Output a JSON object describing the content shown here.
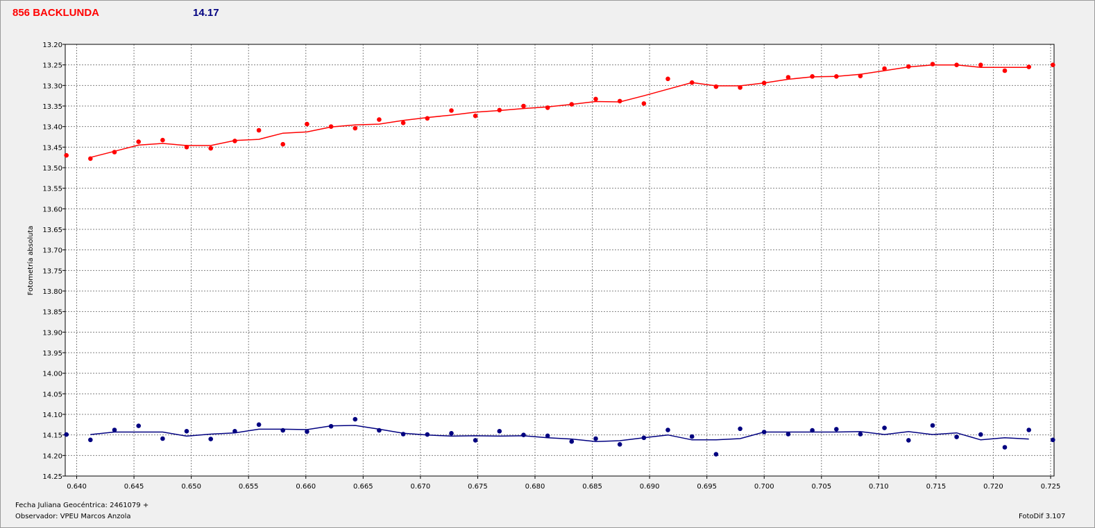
{
  "header": {
    "object_name": "856 BACKLUNDA",
    "comparison_mag": "14.17",
    "object_color": "#ff0000",
    "comparison_color": "#000080"
  },
  "footer": {
    "jd_label": "Fecha Juliana Geocéntrica: 2461079 +",
    "observer_label": "Observador: VPEU Marcos Anzola",
    "software": "FotoDif 3.107"
  },
  "chart_data": {
    "type": "scatter",
    "xlabel": "",
    "ylabel": "Fotometría absoluta",
    "xlim": [
      0.639,
      0.7253
    ],
    "ylim": [
      14.25,
      13.2
    ],
    "y_inverted": true,
    "grid": true,
    "xticks": [
      "0.640",
      "0.645",
      "0.650",
      "0.655",
      "0.660",
      "0.665",
      "0.670",
      "0.675",
      "0.680",
      "0.685",
      "0.690",
      "0.695",
      "0.700",
      "0.705",
      "0.710",
      "0.715",
      "0.720",
      "0.725"
    ],
    "yticks": [
      "13.20",
      "13.25",
      "13.30",
      "13.35",
      "13.40",
      "13.45",
      "13.50",
      "13.55",
      "13.60",
      "13.65",
      "13.70",
      "13.75",
      "13.80",
      "13.85",
      "13.90",
      "13.95",
      "14.00",
      "14.05",
      "14.10",
      "14.15",
      "14.20",
      "14.25"
    ],
    "series": [
      {
        "color": "#ff0000",
        "x": [
          0.6391,
          0.6412,
          0.6433,
          0.6454,
          0.6475,
          0.6496,
          0.6517,
          0.6538,
          0.6559,
          0.658,
          0.6601,
          0.6622,
          0.6643,
          0.6664,
          0.6685,
          0.6706,
          0.6727,
          0.6748,
          0.6769,
          0.679,
          0.6811,
          0.6832,
          0.6853,
          0.6874,
          0.6895,
          0.6916,
          0.6937,
          0.6958,
          0.6979,
          0.7,
          0.7021,
          0.7042,
          0.7063,
          0.7084,
          0.7105,
          0.7126,
          0.7147,
          0.7168,
          0.7189,
          0.721,
          0.7231,
          0.7252
        ],
        "values": [
          13.47,
          13.478,
          13.462,
          13.437,
          13.433,
          13.45,
          13.453,
          13.435,
          13.409,
          13.443,
          13.394,
          13.4,
          13.404,
          13.383,
          13.391,
          13.38,
          13.361,
          13.374,
          13.36,
          13.35,
          13.354,
          13.346,
          13.333,
          13.338,
          13.344,
          13.284,
          13.293,
          13.303,
          13.305,
          13.294,
          13.28,
          13.278,
          13.278,
          13.277,
          13.259,
          13.254,
          13.248,
          13.25,
          13.25,
          13.264,
          13.255,
          13.25
        ],
        "trend_x": [
          0.6412,
          0.6433,
          0.6454,
          0.6475,
          0.6496,
          0.6517,
          0.6538,
          0.6559,
          0.658,
          0.6601,
          0.6622,
          0.6643,
          0.6664,
          0.6685,
          0.6706,
          0.6727,
          0.6748,
          0.6769,
          0.679,
          0.6811,
          0.6832,
          0.6853,
          0.6874,
          0.6895,
          0.6916,
          0.6937,
          0.6958,
          0.6979,
          0.7,
          0.7021,
          0.7042,
          0.7063,
          0.7084,
          0.7105,
          0.7126,
          0.7147,
          0.7168,
          0.7189,
          0.721,
          0.7231
        ],
        "trend": [
          13.475,
          13.46,
          13.445,
          13.441,
          13.446,
          13.446,
          13.434,
          13.431,
          13.416,
          13.413,
          13.401,
          13.396,
          13.394,
          13.385,
          13.378,
          13.372,
          13.365,
          13.361,
          13.356,
          13.352,
          13.346,
          13.339,
          13.34,
          13.325,
          13.309,
          13.293,
          13.301,
          13.301,
          13.294,
          13.285,
          13.279,
          13.278,
          13.273,
          13.264,
          13.255,
          13.25,
          13.25,
          13.256,
          13.256,
          13.256
        ]
      },
      {
        "color": "#000080",
        "x": [
          0.6391,
          0.6412,
          0.6433,
          0.6454,
          0.6475,
          0.6496,
          0.6517,
          0.6538,
          0.6559,
          0.658,
          0.6601,
          0.6622,
          0.6643,
          0.6664,
          0.6685,
          0.6706,
          0.6727,
          0.6748,
          0.6769,
          0.679,
          0.6811,
          0.6832,
          0.6853,
          0.6874,
          0.6895,
          0.6916,
          0.6937,
          0.6958,
          0.6979,
          0.7,
          0.7021,
          0.7042,
          0.7063,
          0.7084,
          0.7105,
          0.7126,
          0.7147,
          0.7168,
          0.7189,
          0.721,
          0.7231,
          0.7252
        ],
        "values": [
          14.149,
          14.162,
          14.138,
          14.128,
          14.159,
          14.141,
          14.16,
          14.141,
          14.125,
          14.139,
          14.142,
          14.129,
          14.112,
          14.139,
          14.148,
          14.149,
          14.146,
          14.163,
          14.141,
          14.15,
          14.152,
          14.166,
          14.159,
          14.173,
          14.157,
          14.138,
          14.154,
          14.197,
          14.135,
          14.143,
          14.148,
          14.139,
          14.136,
          14.148,
          14.133,
          14.163,
          14.127,
          14.155,
          14.149,
          14.18,
          14.138,
          14.162
        ],
        "trend_x": [
          0.6412,
          0.6433,
          0.6454,
          0.6475,
          0.6496,
          0.6517,
          0.6538,
          0.6559,
          0.658,
          0.6601,
          0.6622,
          0.6643,
          0.6664,
          0.6685,
          0.6706,
          0.6727,
          0.6748,
          0.6769,
          0.679,
          0.6811,
          0.6832,
          0.6853,
          0.6874,
          0.6895,
          0.6916,
          0.6937,
          0.6958,
          0.6979,
          0.7,
          0.7021,
          0.7042,
          0.7063,
          0.7084,
          0.7105,
          0.7126,
          0.7147,
          0.7168,
          0.7189,
          0.721,
          0.7231
        ],
        "trend": [
          14.149,
          14.143,
          14.143,
          14.143,
          14.153,
          14.148,
          14.145,
          14.136,
          14.136,
          14.137,
          14.128,
          14.127,
          14.136,
          14.146,
          14.15,
          14.153,
          14.152,
          14.153,
          14.152,
          14.157,
          14.16,
          14.166,
          14.164,
          14.157,
          14.15,
          14.162,
          14.162,
          14.159,
          14.143,
          14.143,
          14.143,
          14.143,
          14.142,
          14.149,
          14.142,
          14.149,
          14.145,
          14.162,
          14.157,
          14.16
        ]
      }
    ]
  }
}
